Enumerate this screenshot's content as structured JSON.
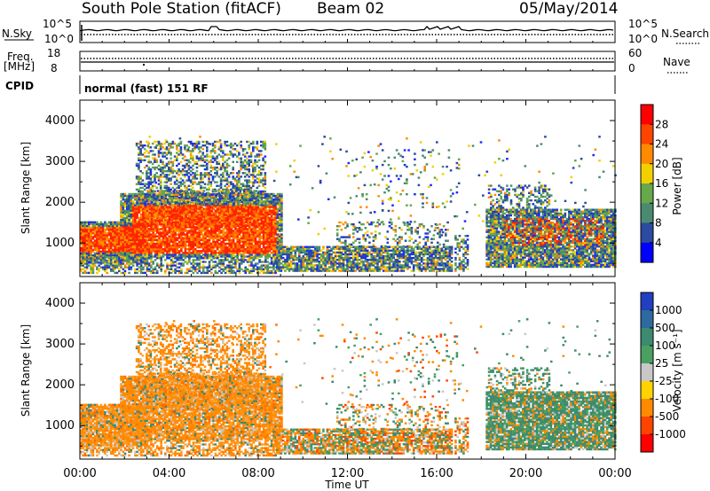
{
  "header": {
    "station": "South Pole Station (fitACF)",
    "beam": "Beam 02",
    "date": "05/May/2014",
    "cpid_value": "normal (fast) 151 RF"
  },
  "labels": {
    "nsky": "N.Sky",
    "freq_line1": "Freq.",
    "freq_line2": "[MHz]",
    "cpid": "CPID",
    "nsearch": "N.Search",
    "nave": "Nave",
    "nsky_tick_top": "10^5",
    "nsky_tick_bottom": "10^0",
    "nsearch_tick_top": "10^5",
    "nsearch_tick_bottom": "10^0",
    "freq_tick_top": "18",
    "freq_tick_bottom": "8",
    "nave_tick_top": "60",
    "nave_tick_bottom": "0"
  },
  "chart_data": [
    {
      "type": "heatmap",
      "title": "",
      "xlabel": "Time UT",
      "ylabel": "Slant Range [km]",
      "colorbar_label": "Power [dB]",
      "colorbar_ticks": [
        "28",
        "24",
        "20",
        "16",
        "12",
        "8",
        "4"
      ],
      "colorbar_colors": [
        "#ff0000",
        "#ff4400",
        "#ff8a00",
        "#f2d000",
        "#66a84a",
        "#4a8a70",
        "#2b4aa0",
        "#0000ff"
      ],
      "x_ticks": [
        "00:00",
        "04:00",
        "08:00",
        "12:00",
        "16:00",
        "20:00",
        "00:00"
      ],
      "y_ticks": [
        "1000",
        "2000",
        "3000",
        "4000"
      ],
      "ylim": [
        180,
        4500
      ],
      "xlim_hours": [
        0,
        24
      ]
    },
    {
      "type": "heatmap",
      "title": "",
      "xlabel": "Time UT",
      "ylabel": "Slant Range [km]",
      "colorbar_label": "Velocity [m s⁻¹]",
      "colorbar_ticks": [
        "1000",
        "500",
        "100",
        "25",
        "-25",
        "-100",
        "-500",
        "-1000"
      ],
      "colorbar_colors": [
        "#2040c0",
        "#2e6aa0",
        "#3d8a70",
        "#4aa060",
        "#c8c8c8",
        "#ffd200",
        "#ff8a00",
        "#ff4400",
        "#ff0000"
      ],
      "x_ticks": [
        "00:00",
        "04:00",
        "08:00",
        "12:00",
        "16:00",
        "20:00",
        "00:00"
      ],
      "y_ticks": [
        "1000",
        "2000",
        "3000",
        "4000"
      ],
      "ylim": [
        180,
        4500
      ],
      "xlim_hours": [
        0,
        24
      ]
    }
  ]
}
